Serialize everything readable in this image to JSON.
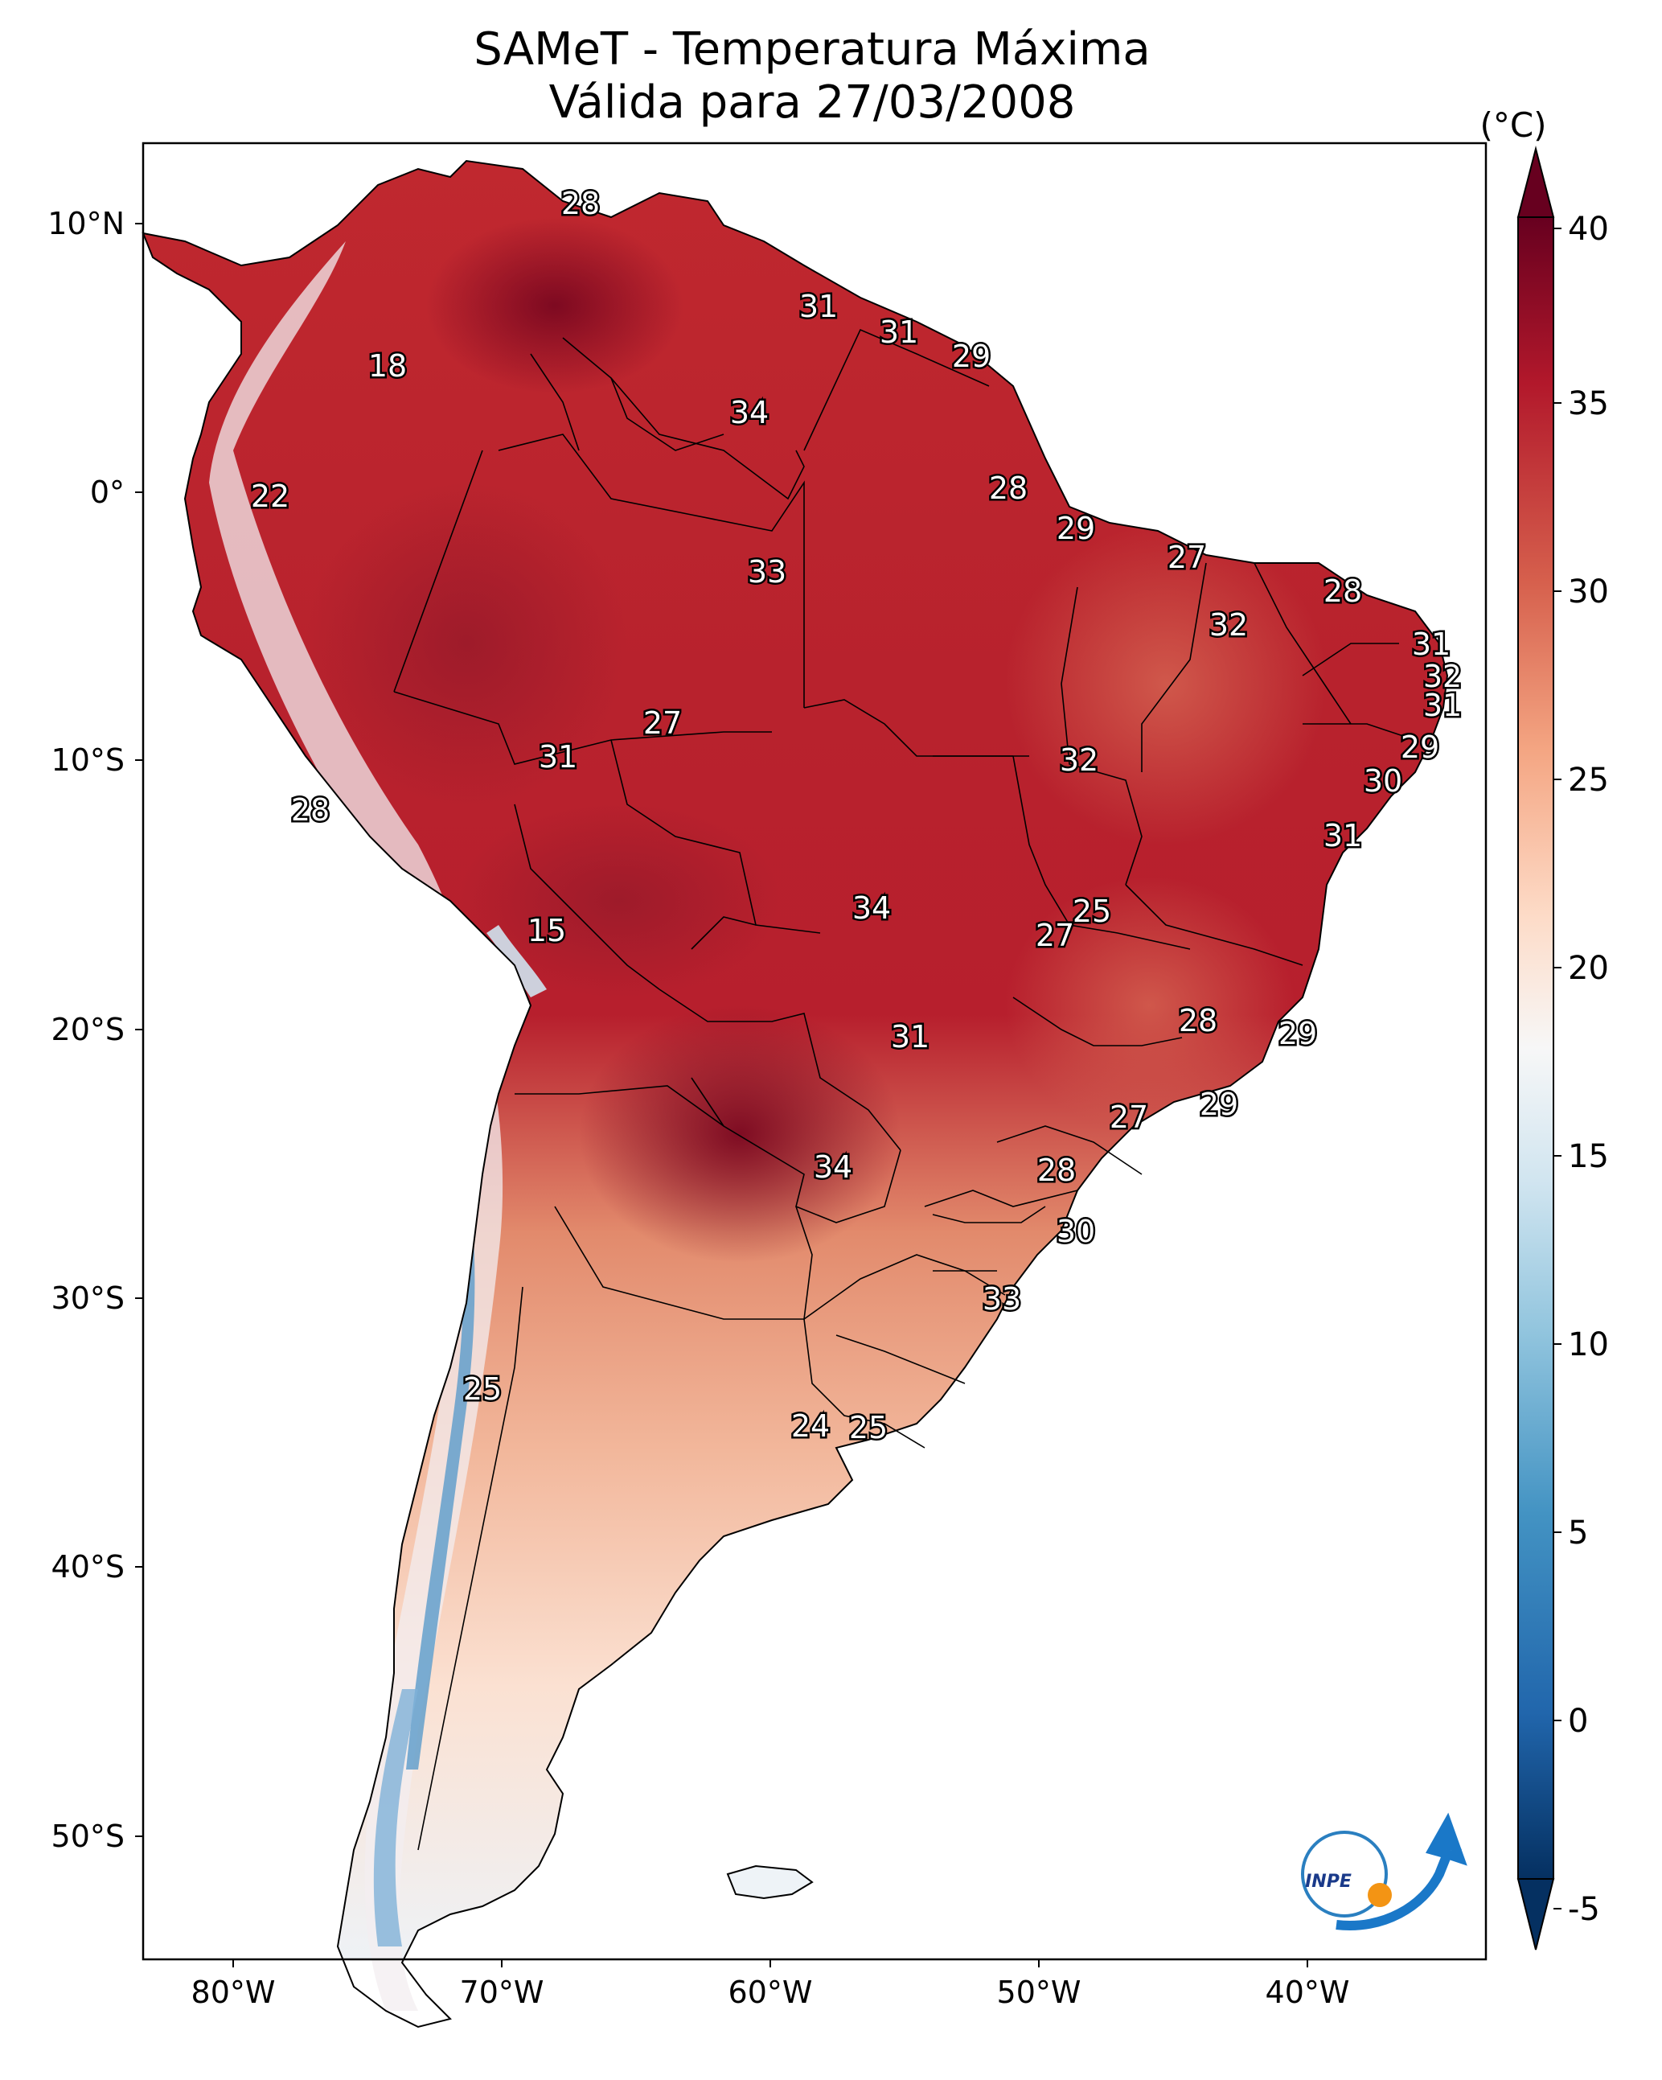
{
  "title": {
    "line1": "SAMeT - Temperatura Máxima",
    "line2": "Válida para 27/03/2008"
  },
  "colorbar": {
    "unit": "(°C)",
    "ticks": [
      "40",
      "35",
      "30",
      "25",
      "20",
      "15",
      "10",
      "5",
      "0",
      "-5"
    ],
    "min": -5,
    "max": 40,
    "colors": [
      "#053061",
      "#2166ac",
      "#4393c3",
      "#92c5de",
      "#d1e5f0",
      "#f7f7f7",
      "#fddbc7",
      "#f4a582",
      "#d6604d",
      "#b2182b",
      "#67001f"
    ]
  },
  "axes": {
    "lat_ticks": [
      "10°N",
      "0°",
      "10°S",
      "20°S",
      "30°S",
      "40°S",
      "50°S"
    ],
    "lon_ticks": [
      "80°W",
      "70°W",
      "60°W",
      "50°W",
      "40°W"
    ]
  },
  "annotations": [
    {
      "text": "28",
      "id": "a1"
    },
    {
      "text": "31",
      "id": "a2"
    },
    {
      "text": "31",
      "id": "a3"
    },
    {
      "text": "29",
      "id": "a4"
    },
    {
      "text": "18",
      "id": "a5"
    },
    {
      "text": "34",
      "id": "a6"
    },
    {
      "text": "22",
      "id": "a7"
    },
    {
      "text": "28",
      "id": "a8"
    },
    {
      "text": "29",
      "id": "a9"
    },
    {
      "text": "27",
      "id": "a10"
    },
    {
      "text": "33",
      "id": "a11"
    },
    {
      "text": "28",
      "id": "a12"
    },
    {
      "text": "32",
      "id": "a13"
    },
    {
      "text": "31",
      "id": "a14"
    },
    {
      "text": "32",
      "id": "a15"
    },
    {
      "text": "31",
      "id": "a16"
    },
    {
      "text": "27",
      "id": "a17"
    },
    {
      "text": "31",
      "id": "a18"
    },
    {
      "text": "32",
      "id": "a19"
    },
    {
      "text": "29",
      "id": "a20"
    },
    {
      "text": "30",
      "id": "a21"
    },
    {
      "text": "28",
      "id": "a22"
    },
    {
      "text": "31",
      "id": "a23"
    },
    {
      "text": "15",
      "id": "a24"
    },
    {
      "text": "34",
      "id": "a25"
    },
    {
      "text": "25",
      "id": "a26"
    },
    {
      "text": "27",
      "id": "a27"
    },
    {
      "text": "28",
      "id": "a28"
    },
    {
      "text": "29",
      "id": "a29"
    },
    {
      "text": "31",
      "id": "a30"
    },
    {
      "text": "27",
      "id": "a31"
    },
    {
      "text": "29",
      "id": "a32"
    },
    {
      "text": "34",
      "id": "a33"
    },
    {
      "text": "28",
      "id": "a34"
    },
    {
      "text": "30",
      "id": "a35"
    },
    {
      "text": "33",
      "id": "a36"
    },
    {
      "text": "25",
      "id": "a37"
    },
    {
      "text": "24",
      "id": "a38"
    },
    {
      "text": "25",
      "id": "a39"
    }
  ],
  "logo": {
    "text": "INPE"
  }
}
